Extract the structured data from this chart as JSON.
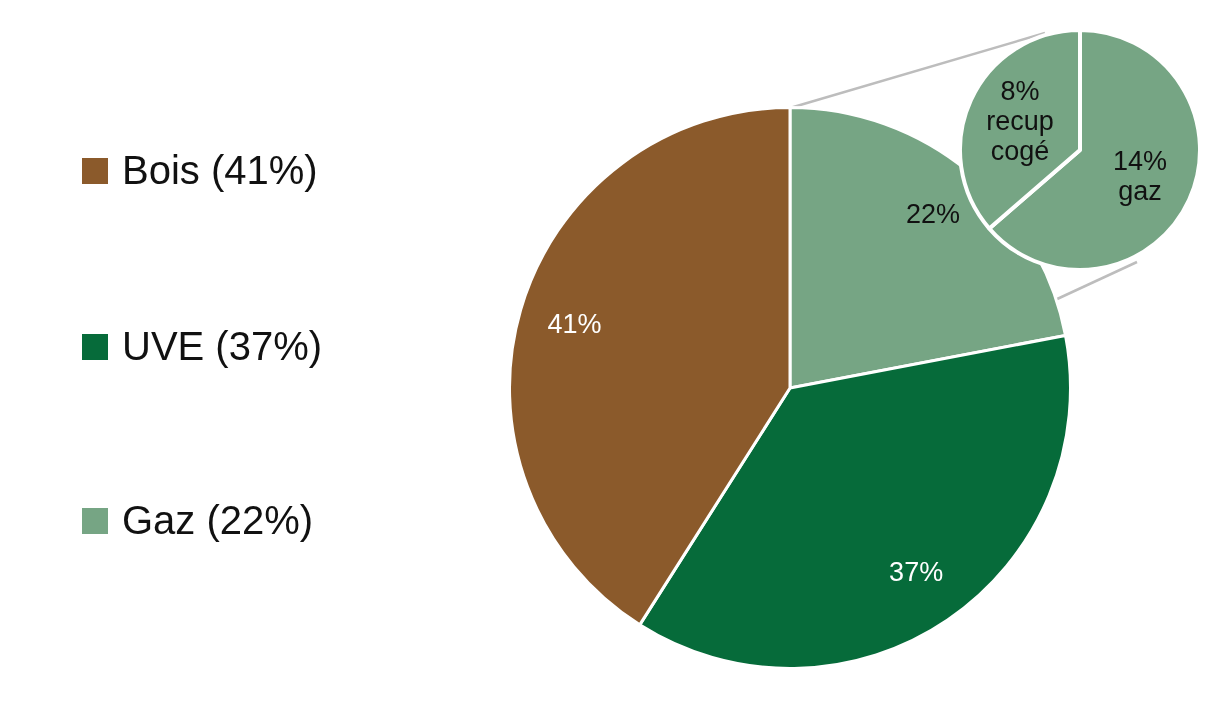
{
  "chart_data": [
    {
      "type": "pie",
      "categories": [
        "Bois (41%)",
        "UVE (37%)",
        "Gaz (22%)"
      ],
      "values": [
        41,
        37,
        22
      ],
      "colors": [
        "#8b5a2b",
        "#066b3a",
        "#76a584"
      ],
      "value_labels": [
        "41%",
        "37%",
        "22%"
      ],
      "legend": "left"
    },
    {
      "type": "pie",
      "categories": [
        "recup cogé",
        "gaz"
      ],
      "values": [
        8,
        14
      ],
      "colors": [
        "#76a584",
        "#76a584"
      ],
      "value_labels": [
        "8%",
        "14%"
      ]
    }
  ]
}
